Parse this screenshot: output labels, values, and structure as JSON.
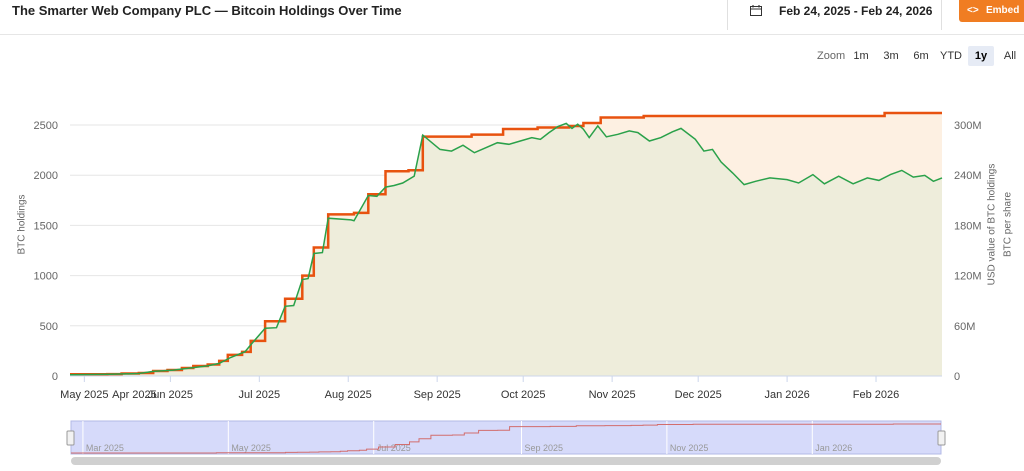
{
  "header": {
    "title": "The Smarter Web Company PLC — Bitcoin Holdings Over Time",
    "date_range": "Feb 24, 2025 - Feb 24, 2026",
    "embed_icon": "<>",
    "embed_label": "Embed"
  },
  "zoom": {
    "label": "Zoom",
    "buttons": [
      "1m",
      "3m",
      "6m",
      "YTD",
      "1y",
      "All"
    ],
    "active": "1y"
  },
  "colors": {
    "holdings_line": "#e8520f",
    "holdings_fill": "#fdf0e2",
    "usd_line": "#2aa14a",
    "usd_fill": "#eeeddb",
    "navigator_fill": "#d6dafa",
    "navigator_line": "#d26d6d"
  },
  "chart_data": {
    "type": "line",
    "x_type": "date",
    "x_range": [
      "2025-04-26",
      "2026-02-24"
    ],
    "x_ticks": [
      {
        "date": "2025-05-01",
        "label": "May 2025"
      },
      {
        "date": "2025-05-31",
        "label": "Jun 2025"
      },
      {
        "date": "2025-07-01",
        "label": "Jul 2025"
      },
      {
        "date": "2025-08-01",
        "label": "Aug 2025"
      },
      {
        "date": "2025-09-01",
        "label": "Sep 2025"
      },
      {
        "date": "2025-10-01",
        "label": "Oct 2025"
      },
      {
        "date": "2025-11-01",
        "label": "Nov 2025"
      },
      {
        "date": "2025-12-01",
        "label": "Dec 2025"
      },
      {
        "date": "2026-01-01",
        "label": "Jan 2026"
      },
      {
        "date": "2026-02-01",
        "label": "Feb 2026"
      }
    ],
    "x_overlap_label": {
      "date": "2025-05-23",
      "label": "Apr 2025"
    },
    "y_left": {
      "label": "BTC holdings",
      "ticks": [
        0,
        500,
        1000,
        1500,
        2000,
        2500
      ],
      "range": [
        0,
        2550
      ]
    },
    "y_right": {
      "label": "USD value of BTC holdings",
      "ticks": [
        "0",
        "60M",
        "120M",
        "180M",
        "240M",
        "300M"
      ],
      "range": [
        0,
        305
      ]
    },
    "y_right_outer_label": "BTC per share",
    "grid": true,
    "series": [
      {
        "key": "holdings",
        "axis": "left",
        "step": true,
        "points": [
          [
            "2025-04-26",
            18
          ],
          [
            "2025-05-09",
            19
          ],
          [
            "2025-05-14",
            25
          ],
          [
            "2025-05-20",
            30
          ],
          [
            "2025-05-25",
            50
          ],
          [
            "2025-05-30",
            60
          ],
          [
            "2025-06-04",
            80
          ],
          [
            "2025-06-08",
            100
          ],
          [
            "2025-06-13",
            115
          ],
          [
            "2025-06-17",
            150
          ],
          [
            "2025-06-20",
            210
          ],
          [
            "2025-06-25",
            240
          ],
          [
            "2025-06-28",
            350
          ],
          [
            "2025-07-03",
            545
          ],
          [
            "2025-07-10",
            770
          ],
          [
            "2025-07-16",
            1000
          ],
          [
            "2025-07-20",
            1280
          ],
          [
            "2025-07-25",
            1610
          ],
          [
            "2025-08-03",
            1625
          ],
          [
            "2025-08-08",
            1810
          ],
          [
            "2025-08-14",
            2040
          ],
          [
            "2025-08-22",
            2050
          ],
          [
            "2025-08-27",
            2385
          ],
          [
            "2025-09-13",
            2405
          ],
          [
            "2025-09-24",
            2460
          ],
          [
            "2025-10-06",
            2475
          ],
          [
            "2025-10-17",
            2490
          ],
          [
            "2025-10-22",
            2520
          ],
          [
            "2025-10-28",
            2575
          ],
          [
            "2025-11-12",
            2590
          ],
          [
            "2026-02-04",
            2620
          ],
          [
            "2026-02-24",
            2620
          ]
        ]
      },
      {
        "key": "usd_value",
        "axis": "right",
        "step": false,
        "points": [
          [
            "2025-04-26",
            1.5
          ],
          [
            "2025-05-10",
            2
          ],
          [
            "2025-05-20",
            3
          ],
          [
            "2025-05-25",
            5.5
          ],
          [
            "2025-06-01",
            7
          ],
          [
            "2025-06-08",
            10
          ],
          [
            "2025-06-13",
            12
          ],
          [
            "2025-06-17",
            15
          ],
          [
            "2025-06-21",
            22
          ],
          [
            "2025-06-26",
            29
          ],
          [
            "2025-06-28",
            37
          ],
          [
            "2025-07-03",
            57
          ],
          [
            "2025-07-07",
            57.5
          ],
          [
            "2025-07-10",
            83
          ],
          [
            "2025-07-13",
            84
          ],
          [
            "2025-07-16",
            115
          ],
          [
            "2025-07-18",
            116
          ],
          [
            "2025-07-20",
            146
          ],
          [
            "2025-07-23",
            147
          ],
          [
            "2025-07-25",
            188
          ],
          [
            "2025-08-02",
            186
          ],
          [
            "2025-08-03",
            185
          ],
          [
            "2025-08-08",
            215
          ],
          [
            "2025-08-11",
            214
          ],
          [
            "2025-08-14",
            225
          ],
          [
            "2025-08-17",
            227
          ],
          [
            "2025-08-20",
            230
          ],
          [
            "2025-08-24",
            238
          ],
          [
            "2025-08-27",
            287
          ],
          [
            "2025-09-02",
            270
          ],
          [
            "2025-09-06",
            268
          ],
          [
            "2025-09-10",
            275
          ],
          [
            "2025-09-14",
            266
          ],
          [
            "2025-09-18",
            272
          ],
          [
            "2025-09-22",
            278
          ],
          [
            "2025-09-26",
            276
          ],
          [
            "2025-09-30",
            280
          ],
          [
            "2025-10-04",
            284
          ],
          [
            "2025-10-07",
            282
          ],
          [
            "2025-10-10",
            290
          ],
          [
            "2025-10-13",
            297
          ],
          [
            "2025-10-16",
            301
          ],
          [
            "2025-10-18",
            295
          ],
          [
            "2025-10-20",
            300
          ],
          [
            "2025-10-22",
            294
          ],
          [
            "2025-10-24",
            284
          ],
          [
            "2025-10-27",
            298
          ],
          [
            "2025-10-30",
            285
          ],
          [
            "2025-11-03",
            288
          ],
          [
            "2025-11-07",
            292
          ],
          [
            "2025-11-10",
            290
          ],
          [
            "2025-11-14",
            280
          ],
          [
            "2025-11-18",
            284
          ],
          [
            "2025-11-22",
            291
          ],
          [
            "2025-11-25",
            295
          ],
          [
            "2025-11-30",
            282
          ],
          [
            "2025-12-03",
            268
          ],
          [
            "2025-12-06",
            270
          ],
          [
            "2025-12-09",
            255
          ],
          [
            "2025-12-13",
            242
          ],
          [
            "2025-12-17",
            228
          ],
          [
            "2025-12-21",
            232
          ],
          [
            "2025-12-26",
            236
          ],
          [
            "2026-01-01",
            234
          ],
          [
            "2026-01-05",
            230
          ],
          [
            "2026-01-10",
            240
          ],
          [
            "2026-01-14",
            229
          ],
          [
            "2026-01-19",
            238
          ],
          [
            "2026-01-24",
            229
          ],
          [
            "2026-01-29",
            236
          ],
          [
            "2026-02-02",
            233
          ],
          [
            "2026-02-06",
            240
          ],
          [
            "2026-02-10",
            245
          ],
          [
            "2026-02-14",
            237
          ],
          [
            "2026-02-18",
            239
          ],
          [
            "2026-02-21",
            232
          ],
          [
            "2026-02-24",
            236
          ]
        ]
      }
    ]
  },
  "navigator": {
    "ticks": [
      {
        "date": "2025-03-01",
        "label": "Mar 2025"
      },
      {
        "date": "2025-05-01",
        "label": "May 2025"
      },
      {
        "date": "2025-07-01",
        "label": "Jul 2025"
      },
      {
        "date": "2025-09-01",
        "label": "Sep 2025"
      },
      {
        "date": "2025-11-01",
        "label": "Nov 2025"
      },
      {
        "date": "2026-01-01",
        "label": "Jan 2026"
      }
    ]
  }
}
